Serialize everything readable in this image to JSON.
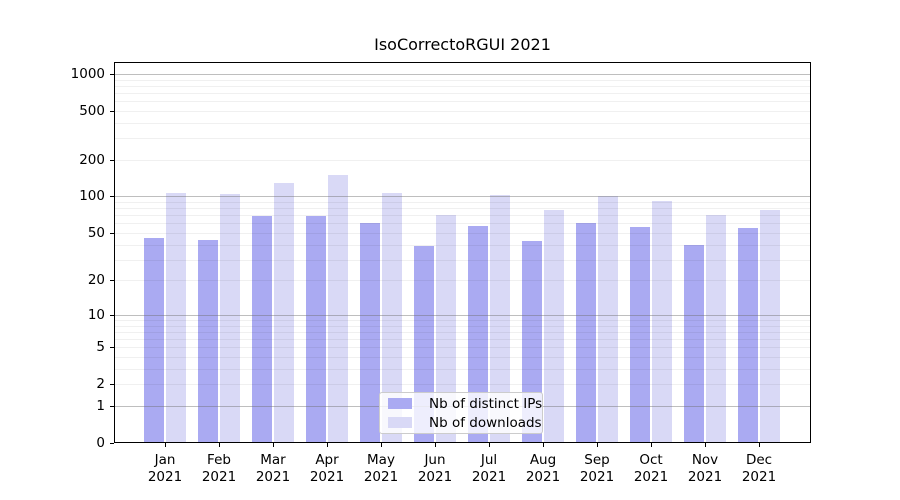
{
  "title": "IsoCorrectoRGUI 2021",
  "chart_data": {
    "type": "bar",
    "title": "IsoCorrectoRGUI 2021",
    "xlabel": "",
    "ylabel": "",
    "scale": "log1p",
    "ylim": [
      0,
      1250
    ],
    "grid": "on",
    "legend_position": "lower center (inside plot)",
    "year": "2021",
    "categories": [
      "Jan",
      "Feb",
      "Mar",
      "Apr",
      "May",
      "Jun",
      "Jul",
      "Aug",
      "Sep",
      "Oct",
      "Nov",
      "Dec"
    ],
    "series": [
      {
        "name": "Nb of distinct IPs",
        "color": "#aaaaf2",
        "values": [
          45,
          44,
          69,
          69,
          60,
          39,
          57,
          43,
          61,
          56,
          40,
          55
        ]
      },
      {
        "name": "Nb of downloads",
        "color": "#d9d9f6",
        "values": [
          107,
          105,
          130,
          150,
          107,
          71,
          102,
          77,
          101,
          92,
          70,
          77
        ]
      }
    ],
    "yticks": [
      0,
      1,
      2,
      5,
      10,
      20,
      50,
      100,
      200,
      500,
      1000
    ],
    "major_gridlines": [
      1,
      10,
      100,
      1000
    ],
    "minor_gridlines": [
      2,
      3,
      4,
      5,
      6,
      7,
      8,
      9,
      20,
      30,
      40,
      50,
      60,
      70,
      80,
      90,
      200,
      300,
      400,
      500,
      600,
      700,
      800,
      900
    ]
  },
  "colors": {
    "distinct_ips_bar": "#aaaaf2",
    "downloads_bar": "#d9d9f6",
    "major_grid": "#b9b9b9",
    "minor_grid": "#efefef",
    "axis_frame": "#000000",
    "background": "#ffffff"
  }
}
